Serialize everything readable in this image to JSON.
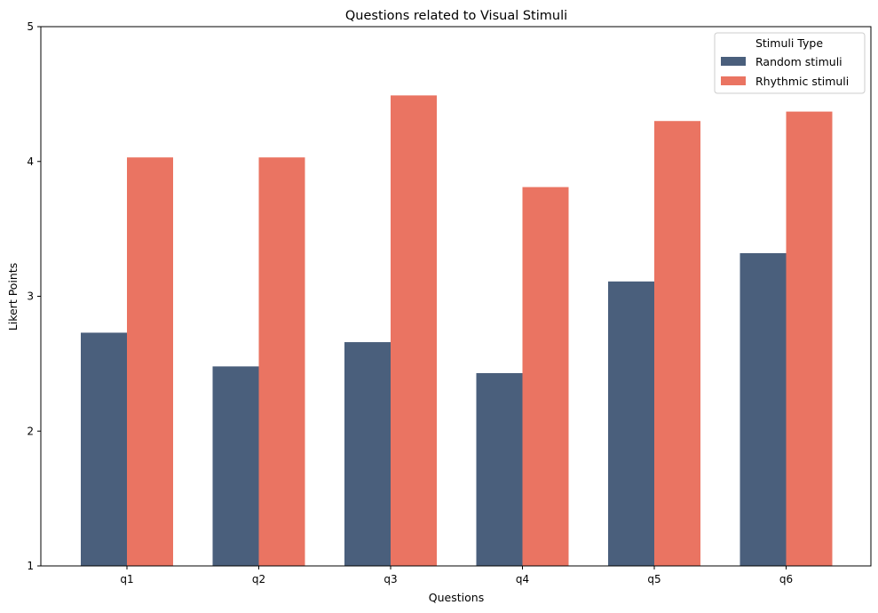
{
  "chart_data": {
    "type": "bar",
    "title": "Questions related to Visual Stimuli",
    "xlabel": "Questions",
    "ylabel": "Likert Points",
    "categories": [
      "q1",
      "q2",
      "q3",
      "q4",
      "q5",
      "q6"
    ],
    "series": [
      {
        "name": "Random stimuli",
        "color": "#4a5f7c",
        "values": [
          2.73,
          2.48,
          2.66,
          2.43,
          3.11,
          3.32
        ]
      },
      {
        "name": "Rhythmic stimuli",
        "color": "#ea7462",
        "values": [
          4.03,
          4.03,
          4.49,
          3.81,
          4.3,
          4.37
        ]
      }
    ],
    "ylim": [
      1,
      5
    ],
    "yticks": [
      "1",
      "2",
      "3",
      "4",
      "5"
    ],
    "grid": false,
    "legend": {
      "title": "Stimuli Type",
      "placement": "top-right"
    }
  }
}
